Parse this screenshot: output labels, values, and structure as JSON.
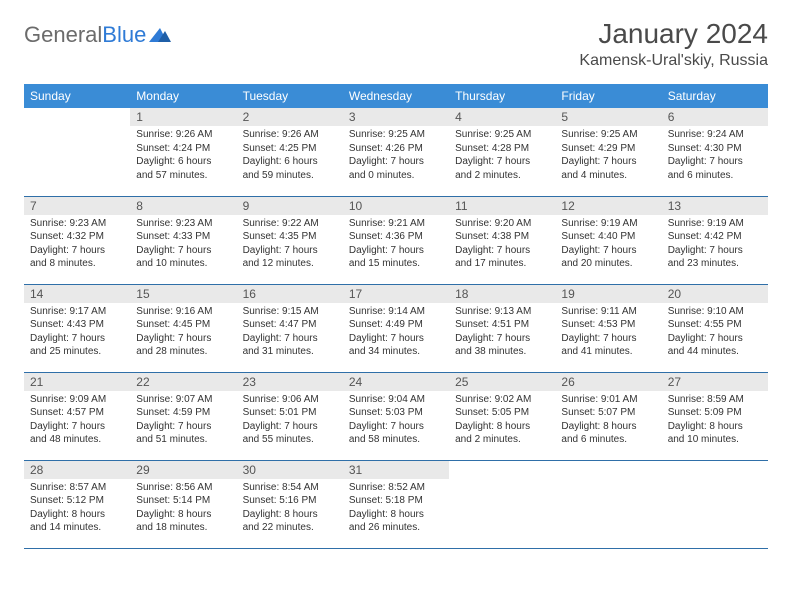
{
  "brand": {
    "part1": "General",
    "part2": "Blue"
  },
  "title": "January 2024",
  "location": "Kamensk-Ural'skiy, Russia",
  "colors": {
    "header_bg": "#3a8cd6",
    "header_text": "#ffffff",
    "daynum_bg": "#e9e9e9",
    "row_border": "#2f6fa8",
    "brand_gray": "#6b6b6b",
    "brand_blue": "#2f7bd6"
  },
  "day_headers": [
    "Sunday",
    "Monday",
    "Tuesday",
    "Wednesday",
    "Thursday",
    "Friday",
    "Saturday"
  ],
  "weeks": [
    [
      {
        "empty": true
      },
      {
        "n": "1",
        "sunrise": "9:26 AM",
        "sunset": "4:24 PM",
        "daylight": "6 hours and 57 minutes."
      },
      {
        "n": "2",
        "sunrise": "9:26 AM",
        "sunset": "4:25 PM",
        "daylight": "6 hours and 59 minutes."
      },
      {
        "n": "3",
        "sunrise": "9:25 AM",
        "sunset": "4:26 PM",
        "daylight": "7 hours and 0 minutes."
      },
      {
        "n": "4",
        "sunrise": "9:25 AM",
        "sunset": "4:28 PM",
        "daylight": "7 hours and 2 minutes."
      },
      {
        "n": "5",
        "sunrise": "9:25 AM",
        "sunset": "4:29 PM",
        "daylight": "7 hours and 4 minutes."
      },
      {
        "n": "6",
        "sunrise": "9:24 AM",
        "sunset": "4:30 PM",
        "daylight": "7 hours and 6 minutes."
      }
    ],
    [
      {
        "n": "7",
        "sunrise": "9:23 AM",
        "sunset": "4:32 PM",
        "daylight": "7 hours and 8 minutes."
      },
      {
        "n": "8",
        "sunrise": "9:23 AM",
        "sunset": "4:33 PM",
        "daylight": "7 hours and 10 minutes."
      },
      {
        "n": "9",
        "sunrise": "9:22 AM",
        "sunset": "4:35 PM",
        "daylight": "7 hours and 12 minutes."
      },
      {
        "n": "10",
        "sunrise": "9:21 AM",
        "sunset": "4:36 PM",
        "daylight": "7 hours and 15 minutes."
      },
      {
        "n": "11",
        "sunrise": "9:20 AM",
        "sunset": "4:38 PM",
        "daylight": "7 hours and 17 minutes."
      },
      {
        "n": "12",
        "sunrise": "9:19 AM",
        "sunset": "4:40 PM",
        "daylight": "7 hours and 20 minutes."
      },
      {
        "n": "13",
        "sunrise": "9:19 AM",
        "sunset": "4:42 PM",
        "daylight": "7 hours and 23 minutes."
      }
    ],
    [
      {
        "n": "14",
        "sunrise": "9:17 AM",
        "sunset": "4:43 PM",
        "daylight": "7 hours and 25 minutes."
      },
      {
        "n": "15",
        "sunrise": "9:16 AM",
        "sunset": "4:45 PM",
        "daylight": "7 hours and 28 minutes."
      },
      {
        "n": "16",
        "sunrise": "9:15 AM",
        "sunset": "4:47 PM",
        "daylight": "7 hours and 31 minutes."
      },
      {
        "n": "17",
        "sunrise": "9:14 AM",
        "sunset": "4:49 PM",
        "daylight": "7 hours and 34 minutes."
      },
      {
        "n": "18",
        "sunrise": "9:13 AM",
        "sunset": "4:51 PM",
        "daylight": "7 hours and 38 minutes."
      },
      {
        "n": "19",
        "sunrise": "9:11 AM",
        "sunset": "4:53 PM",
        "daylight": "7 hours and 41 minutes."
      },
      {
        "n": "20",
        "sunrise": "9:10 AM",
        "sunset": "4:55 PM",
        "daylight": "7 hours and 44 minutes."
      }
    ],
    [
      {
        "n": "21",
        "sunrise": "9:09 AM",
        "sunset": "4:57 PM",
        "daylight": "7 hours and 48 minutes."
      },
      {
        "n": "22",
        "sunrise": "9:07 AM",
        "sunset": "4:59 PM",
        "daylight": "7 hours and 51 minutes."
      },
      {
        "n": "23",
        "sunrise": "9:06 AM",
        "sunset": "5:01 PM",
        "daylight": "7 hours and 55 minutes."
      },
      {
        "n": "24",
        "sunrise": "9:04 AM",
        "sunset": "5:03 PM",
        "daylight": "7 hours and 58 minutes."
      },
      {
        "n": "25",
        "sunrise": "9:02 AM",
        "sunset": "5:05 PM",
        "daylight": "8 hours and 2 minutes."
      },
      {
        "n": "26",
        "sunrise": "9:01 AM",
        "sunset": "5:07 PM",
        "daylight": "8 hours and 6 minutes."
      },
      {
        "n": "27",
        "sunrise": "8:59 AM",
        "sunset": "5:09 PM",
        "daylight": "8 hours and 10 minutes."
      }
    ],
    [
      {
        "n": "28",
        "sunrise": "8:57 AM",
        "sunset": "5:12 PM",
        "daylight": "8 hours and 14 minutes."
      },
      {
        "n": "29",
        "sunrise": "8:56 AM",
        "sunset": "5:14 PM",
        "daylight": "8 hours and 18 minutes."
      },
      {
        "n": "30",
        "sunrise": "8:54 AM",
        "sunset": "5:16 PM",
        "daylight": "8 hours and 22 minutes."
      },
      {
        "n": "31",
        "sunrise": "8:52 AM",
        "sunset": "5:18 PM",
        "daylight": "8 hours and 26 minutes."
      },
      {
        "empty": true
      },
      {
        "empty": true
      },
      {
        "empty": true
      }
    ]
  ]
}
